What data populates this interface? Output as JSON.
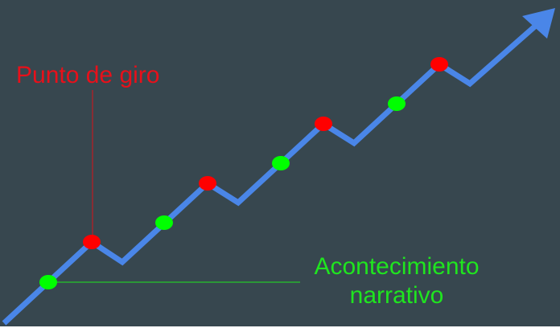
{
  "labels": {
    "turning_point": "Punto de giro",
    "narrative_event": {
      "line1": "Acontecimiento",
      "line2": "narrativo"
    }
  },
  "colors": {
    "background": "#37474f",
    "path": "#4a86e8",
    "turning_point": "#ff0000",
    "narrative_event": "#00ff00",
    "turning_label": "#e8101a",
    "event_label": "#1fe51f"
  }
}
